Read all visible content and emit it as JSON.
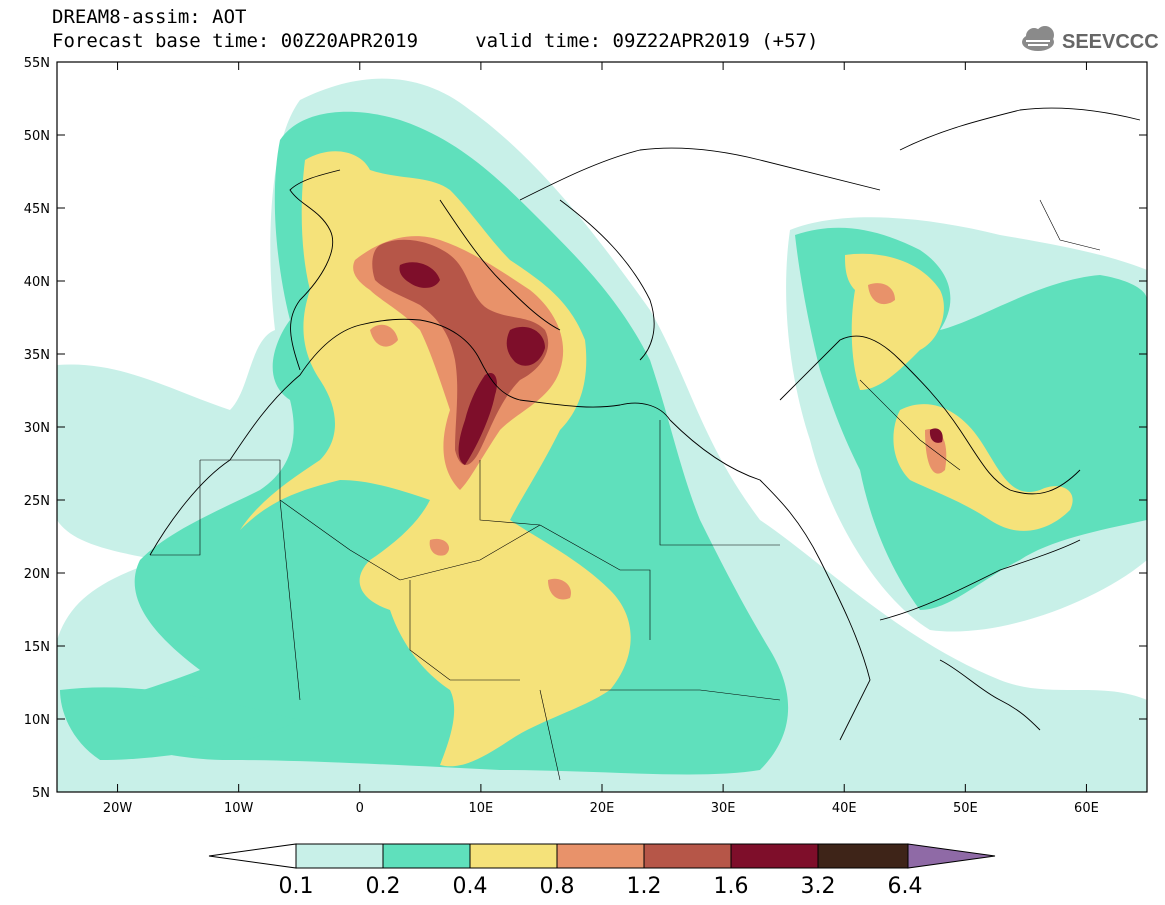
{
  "header": {
    "line1": "DREAM8-assim: AOT",
    "line2": "Forecast base time: 00Z20APR2019     valid time: 09Z22APR2019 (+57)",
    "logo_text": "SEEVCCC"
  },
  "map": {
    "lon_range": [
      -25,
      65
    ],
    "lat_range": [
      5,
      55
    ],
    "lon_ticks": [
      {
        "value": -20,
        "label": "20W"
      },
      {
        "value": -10,
        "label": "10W"
      },
      {
        "value": 0,
        "label": "0"
      },
      {
        "value": 10,
        "label": "10E"
      },
      {
        "value": 20,
        "label": "20E"
      },
      {
        "value": 30,
        "label": "30E"
      },
      {
        "value": 40,
        "label": "40E"
      },
      {
        "value": 50,
        "label": "50E"
      },
      {
        "value": 60,
        "label": "60E"
      }
    ],
    "lat_ticks": [
      {
        "value": 55,
        "label": "55N"
      },
      {
        "value": 50,
        "label": "50N"
      },
      {
        "value": 45,
        "label": "45N"
      },
      {
        "value": 40,
        "label": "40N"
      },
      {
        "value": 35,
        "label": "35N"
      },
      {
        "value": 30,
        "label": "30N"
      },
      {
        "value": 25,
        "label": "25N"
      },
      {
        "value": 20,
        "label": "20N"
      },
      {
        "value": 15,
        "label": "15N"
      },
      {
        "value": 10,
        "label": "10N"
      },
      {
        "value": 5,
        "label": "5N"
      }
    ]
  },
  "colorbar": {
    "levels": [
      "0.1",
      "0.2",
      "0.4",
      "0.8",
      "1.2",
      "1.6",
      "3.2",
      "6.4"
    ],
    "colors": [
      "#ffffff",
      "#c8f0e8",
      "#5fe0bc",
      "#f5e27a",
      "#e8926a",
      "#b65648",
      "#7e0e2a",
      "#3e2418",
      "#8f6aa6"
    ]
  },
  "colors": {
    "very_light": "#c8f0e8",
    "light_green": "#5fe0bc",
    "yellow": "#f5e27a",
    "salmon": "#e8926a",
    "brown": "#b65648",
    "maroon": "#7e0e2a"
  }
}
